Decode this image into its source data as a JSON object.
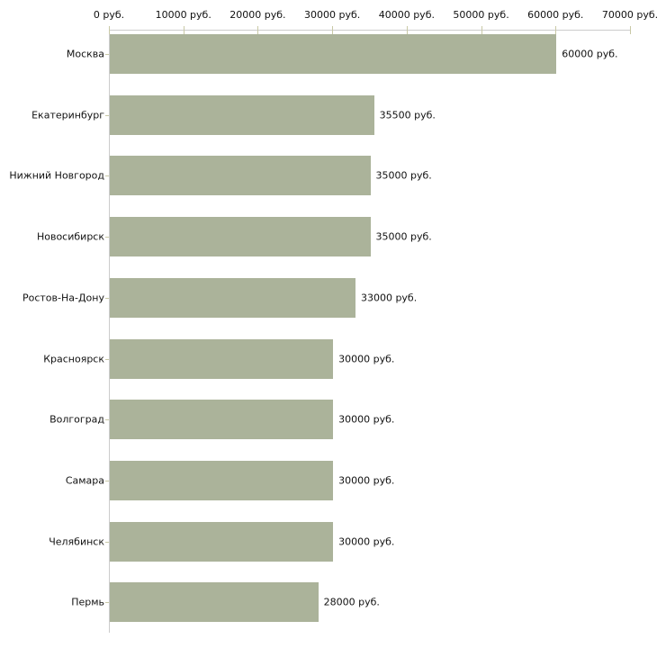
{
  "chart_data": {
    "type": "bar",
    "orientation": "horizontal",
    "title": "",
    "xlabel": "",
    "ylabel": "",
    "unit": "руб.",
    "categories": [
      "Москва",
      "Екатеринбург",
      "Нижний Новгород",
      "Новосибирск",
      "Ростов-На-Дону",
      "Красноярск",
      "Волгоград",
      "Самара",
      "Челябинск",
      "Пермь"
    ],
    "values": [
      60000,
      35500,
      35000,
      35000,
      33000,
      30000,
      30000,
      30000,
      30000,
      28000
    ],
    "value_labels": [
      "60000 руб.",
      "35500 руб.",
      "35000 руб.",
      "35000 руб.",
      "33000 руб.",
      "30000 руб.",
      "30000 руб.",
      "30000 руб.",
      "30000 руб.",
      "28000 руб."
    ],
    "x_ticks": [
      0,
      10000,
      20000,
      30000,
      40000,
      50000,
      60000,
      70000
    ],
    "x_tick_labels": [
      "0 руб.",
      "10000 руб.",
      "20000 руб.",
      "30000 руб.",
      "40000 руб.",
      "50000 руб.",
      "60000 руб.",
      "70000 руб."
    ],
    "xlim": [
      0,
      70000
    ],
    "grid": false,
    "legend": "none",
    "colors": {
      "bar": "#abb39a",
      "axis_line": "#cccccc",
      "tick": "#c9c9a6",
      "text": "#111111",
      "background": "#ffffff"
    }
  }
}
